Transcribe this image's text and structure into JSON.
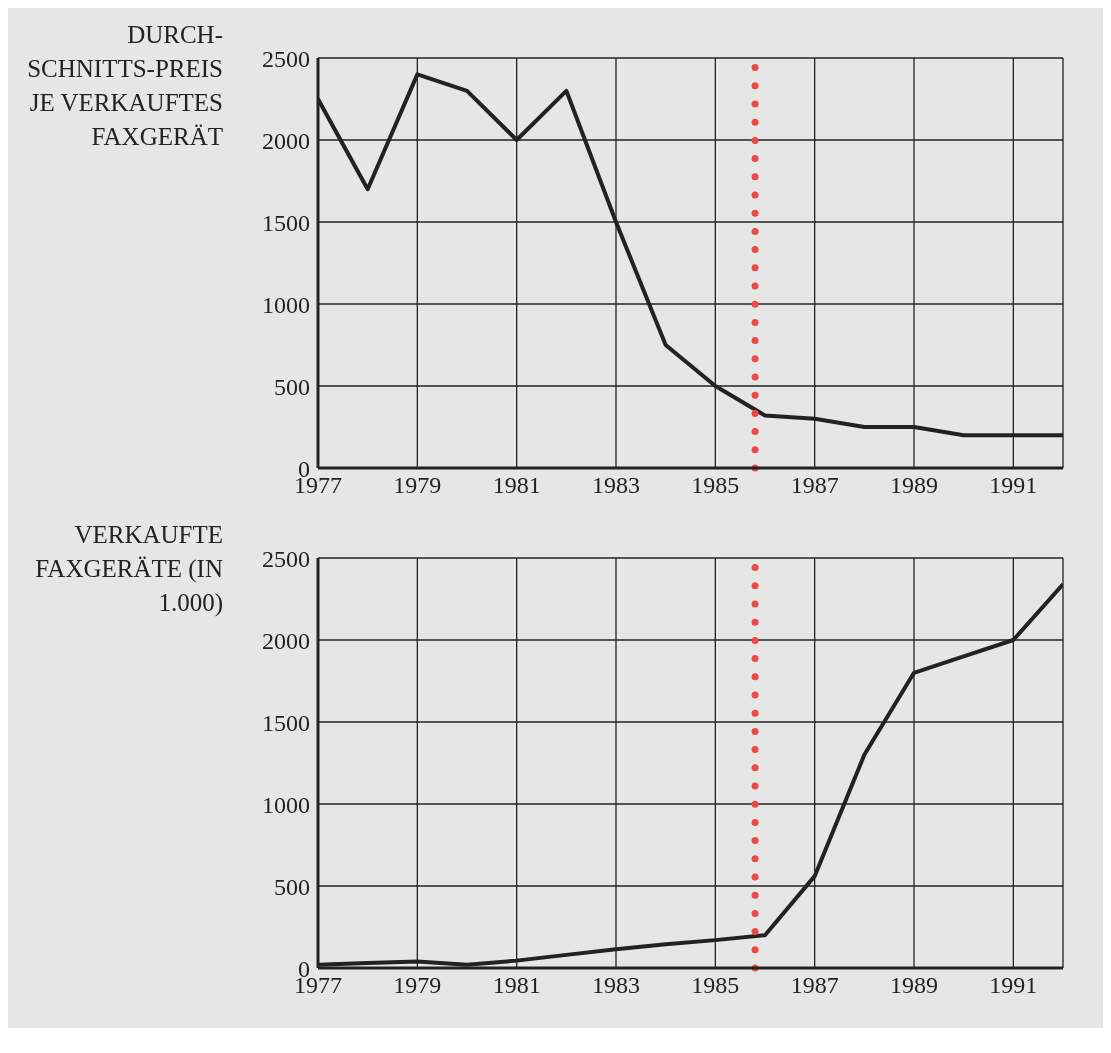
{
  "chart_data": [
    {
      "type": "line",
      "ylabel": "DURCH-SCHNITTS-PREIS JE VERKAUFTES FAXGERÄT",
      "color": "#222222",
      "line_style": "solid",
      "grid": true,
      "x": [
        1977,
        1978,
        1979,
        1980,
        1981,
        1982,
        1983,
        1984,
        1985,
        1986,
        1987,
        1988,
        1989,
        1990,
        1991,
        1992
      ],
      "values": [
        2250,
        1700,
        2400,
        2300,
        2000,
        2300,
        1500,
        750,
        500,
        320,
        300,
        250,
        250,
        200,
        200,
        200
      ],
      "xlim": [
        1977,
        1992
      ],
      "xticks": [
        1977,
        1979,
        1981,
        1983,
        1985,
        1987,
        1989,
        1991
      ],
      "ylim": [
        0,
        2500
      ],
      "yticks": [
        0,
        500,
        1000,
        1500,
        2000,
        2500
      ],
      "ref_lines": [
        {
          "axis": "x",
          "value": 1985.8,
          "color": "#f04848",
          "line_style": "dotted"
        }
      ]
    },
    {
      "type": "line",
      "ylabel": "VERKAUFTE FAXGERÄTE (IN 1.000)",
      "color": "#222222",
      "line_style": "solid",
      "grid": true,
      "x": [
        1977,
        1978,
        1979,
        1980,
        1981,
        1982,
        1983,
        1984,
        1985,
        1986,
        1987,
        1988,
        1989,
        1990,
        1991,
        1992
      ],
      "values": [
        20,
        30,
        40,
        20,
        45,
        80,
        115,
        145,
        170,
        200,
        560,
        1300,
        1800,
        1900,
        2000,
        2340
      ],
      "xlim": [
        1977,
        1992
      ],
      "xticks": [
        1977,
        1979,
        1981,
        1983,
        1985,
        1987,
        1989,
        1991
      ],
      "ylim": [
        0,
        2500
      ],
      "yticks": [
        0,
        500,
        1000,
        1500,
        2000,
        2500
      ],
      "ref_lines": [
        {
          "axis": "x",
          "value": 1985.8,
          "color": "#f04848",
          "line_style": "dotted"
        }
      ]
    }
  ]
}
